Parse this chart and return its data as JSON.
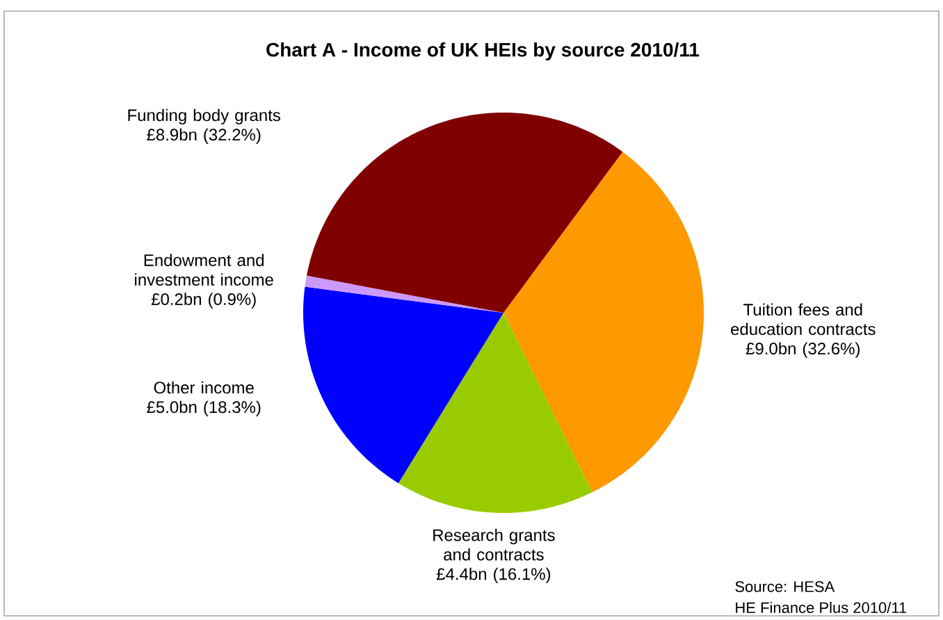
{
  "chart_data": {
    "type": "pie",
    "title": "Chart A - Income of UK HEIs by source 2010/11",
    "categories": [
      "Tuition fees and education contracts",
      "Research grants and contracts",
      "Other income",
      "Endowment and investment income",
      "Funding body grants"
    ],
    "values": [
      32.6,
      16.1,
      18.3,
      0.9,
      32.2
    ],
    "value_labels": [
      "£9.0bn (32.6%)",
      "£4.4bn (16.1%)",
      "£5.0bn (18.3%)",
      "£0.2bn (0.9%)",
      "£8.9bn (32.2%)"
    ],
    "colors": [
      "#ff9900",
      "#99cc00",
      "#0000ff",
      "#cc99ff",
      "#800000"
    ],
    "annotations": [
      "Source: HESA",
      "HE Finance Plus 2010/11"
    ]
  }
}
